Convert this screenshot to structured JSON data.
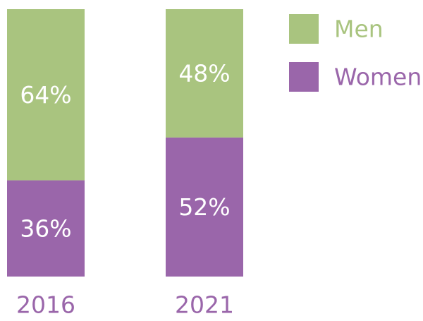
{
  "chart_data": {
    "type": "bar",
    "stacked": true,
    "percent_stacked": true,
    "categories": [
      "2016",
      "2021"
    ],
    "series": [
      {
        "name": "Women",
        "values": [
          36,
          52
        ],
        "labels": [
          "36%",
          "52%"
        ],
        "color": "#9a66aa"
      },
      {
        "name": "Men",
        "values": [
          64,
          48
        ],
        "labels": [
          "64%",
          "48%"
        ],
        "color": "#a9c47f"
      }
    ],
    "ylim": [
      0,
      100
    ],
    "grid": false,
    "legend": {
      "position": "top-right",
      "order": [
        "Men",
        "Women"
      ]
    },
    "colors": {
      "category_label": "#9a66aa",
      "segment_label": "#ffffff"
    }
  }
}
